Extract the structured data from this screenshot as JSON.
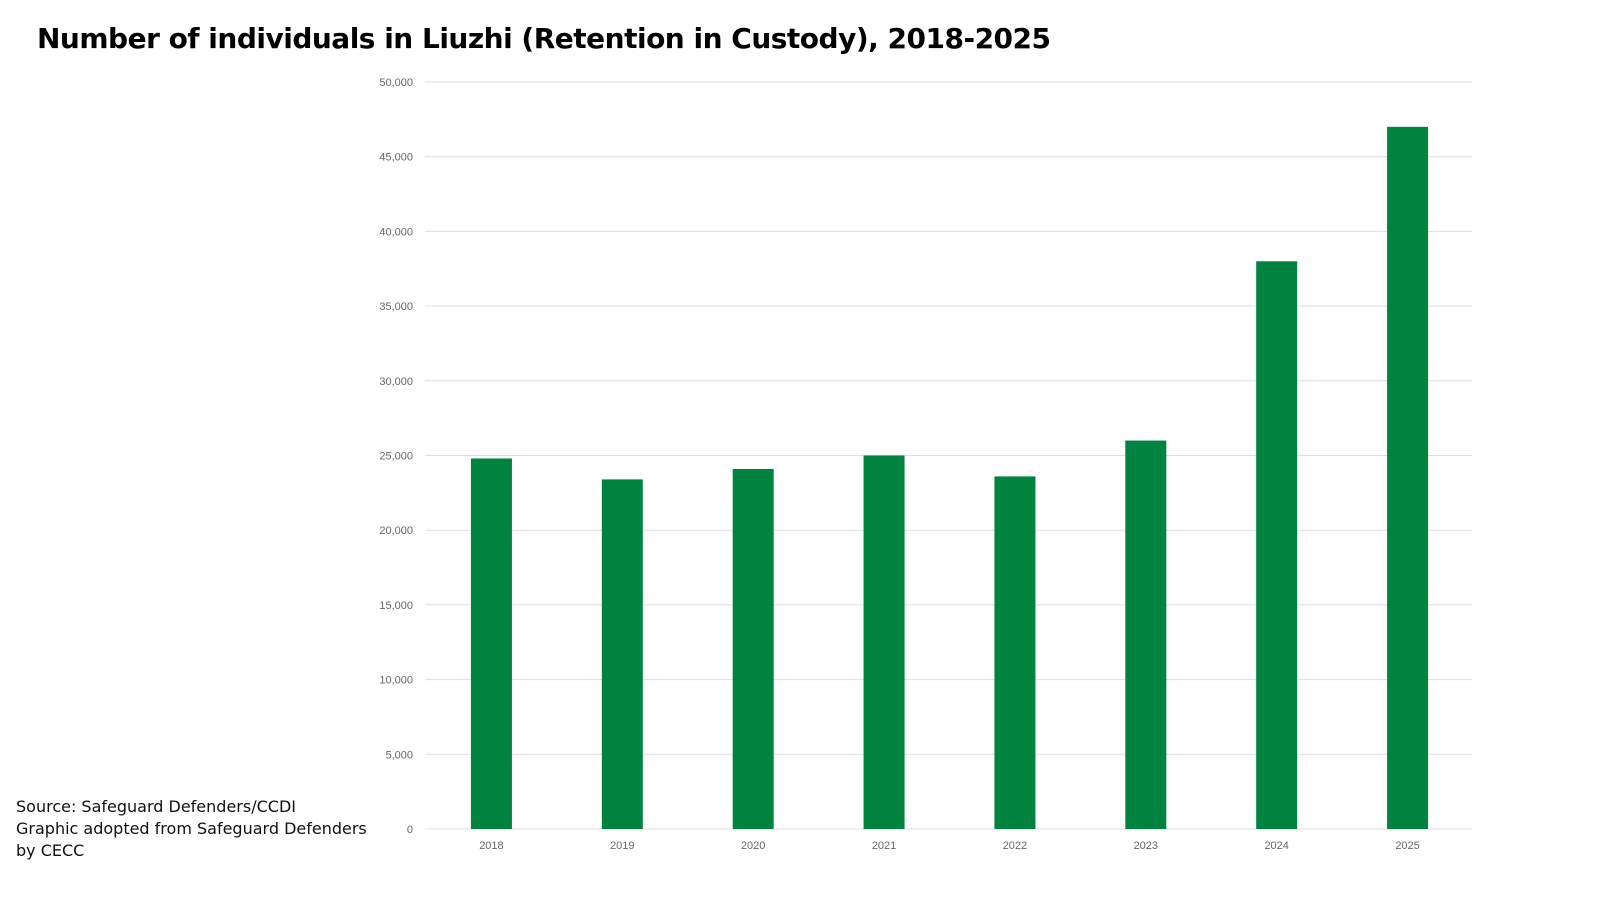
{
  "chart_data": {
    "type": "bar",
    "title": "Number of individuals in Liuzhi (Retention in Custody), 2018-2025",
    "categories": [
      "2018",
      "2019",
      "2020",
      "2021",
      "2022",
      "2023",
      "2024",
      "2025"
    ],
    "values": [
      24800,
      23400,
      24100,
      25000,
      23600,
      26000,
      38000,
      47000
    ],
    "ylim": [
      0,
      50000
    ],
    "yticks": [
      "0",
      "5,000",
      "10,000",
      "15,000",
      "20,000",
      "25,000",
      "30,000",
      "35,000",
      "40,000",
      "45,000",
      "50,000"
    ],
    "xlabel": "",
    "ylabel": "",
    "grid": true,
    "bar_color": "#00833e",
    "grid_color": "#dddddd"
  },
  "notes": {
    "lines": [
      "Source: Safeguard Defenders/CCDI",
      "Graphic adopted from Safeguard Defenders",
      "by CECC"
    ]
  }
}
